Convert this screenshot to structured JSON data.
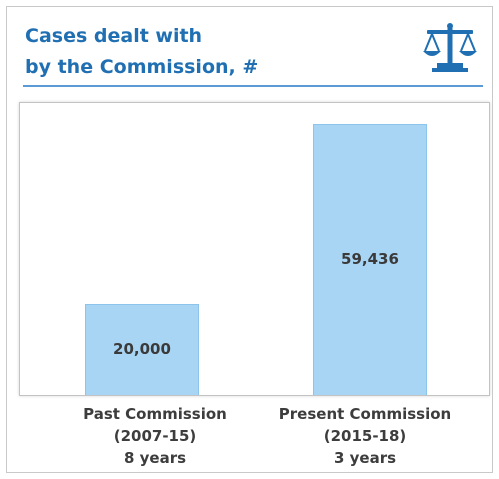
{
  "title": {
    "line1": "Cases dealt with",
    "line2": "by the Commission, #"
  },
  "icon": "scales-of-justice-icon",
  "colors": {
    "title": "#1f6fb2",
    "accent": "#5b9bd5",
    "bar": "#a9d5f5",
    "text": "#3d3d3d"
  },
  "chart_data": {
    "type": "bar",
    "categories": [
      "Past Commission (2007-15) 8 years",
      "Present Commission (2015-18) 3 years"
    ],
    "category_lines": [
      [
        "Past Commission",
        "(2007-15)",
        "8 years"
      ],
      [
        "Present Commission",
        "(2015-18)",
        "3 years"
      ]
    ],
    "values": [
      20000,
      59436
    ],
    "data_labels": [
      "20,000",
      "59,436"
    ],
    "title": "Cases dealt with by the Commission, #",
    "xlabel": "",
    "ylabel": "",
    "ylim": [
      0,
      64000
    ],
    "grid": false,
    "legend": "none"
  }
}
